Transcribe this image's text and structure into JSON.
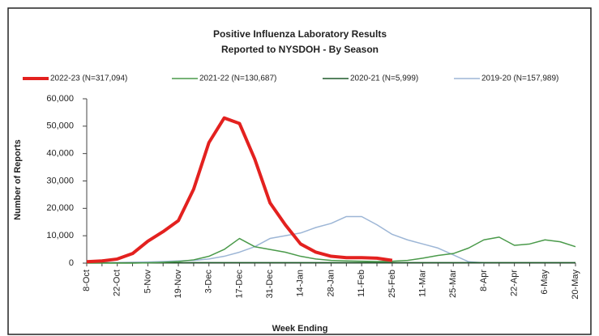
{
  "chart_data": {
    "type": "line",
    "title": "Positive Influenza Laboratory Results",
    "subtitle": "Reported to NYSDOH - By Season",
    "y_label": "Number of Reports",
    "x_label": "Week Ending",
    "categories": [
      "8-Oct",
      null,
      "22-Oct",
      null,
      "5-Nov",
      null,
      "19-Nov",
      null,
      "3-Dec",
      null,
      "17-Dec",
      null,
      "31-Dec",
      null,
      "14-Jan",
      null,
      "28-Jan",
      null,
      "11-Feb",
      null,
      "25-Feb",
      null,
      "11-Mar",
      null,
      "25-Mar",
      null,
      "8-Apr",
      null,
      "22-Apr",
      null,
      "6-May",
      null,
      "20-May"
    ],
    "series": [
      {
        "name": "2022-23 (N=317,094)",
        "color": "#e3211f",
        "width": 4,
        "values": [
          500,
          800,
          1500,
          3500,
          8000,
          11500,
          15500,
          27000,
          44000,
          53000,
          51000,
          38000,
          22000,
          14000,
          7000,
          4000,
          2500,
          2000,
          2000,
          1800,
          1000,
          null,
          null,
          null,
          null,
          null,
          null,
          null,
          null,
          null,
          null,
          null,
          null
        ]
      },
      {
        "name": "2021-22 (N=130,687)",
        "color": "#4a9a4a",
        "width": 1.5,
        "values": [
          0,
          0,
          0,
          0,
          100,
          300,
          600,
          1200,
          2500,
          5000,
          9000,
          6000,
          5000,
          4000,
          2500,
          1500,
          1000,
          800,
          700,
          600,
          700,
          1000,
          1800,
          2800,
          3500,
          5500,
          8500,
          9500,
          6500,
          7000,
          8500,
          7800,
          6000
        ]
      },
      {
        "name": "2020-21 (N=5,999)",
        "color": "#1f5a2a",
        "width": 1.5,
        "values": [
          100,
          100,
          100,
          100,
          100,
          150,
          150,
          200,
          200,
          200,
          200,
          200,
          200,
          200,
          200,
          200,
          200,
          200,
          200,
          200,
          200,
          200,
          200,
          200,
          200,
          200,
          200,
          200,
          200,
          200,
          200,
          200,
          200
        ]
      },
      {
        "name": "2019-20 (N=157,989)",
        "color": "#9db6d6",
        "width": 1.5,
        "values": [
          100,
          100,
          200,
          300,
          400,
          600,
          800,
          1000,
          1500,
          2500,
          4000,
          6000,
          9000,
          10000,
          11000,
          13000,
          14500,
          17000,
          17000,
          14000,
          10500,
          8500,
          7000,
          5500,
          3000,
          500,
          100,
          null,
          null,
          null,
          null,
          null,
          null
        ]
      }
    ],
    "ylim": [
      0,
      60000
    ],
    "yticks": [
      0,
      {
        "value": 10000,
        "label": "10,000"
      },
      {
        "value": 20000,
        "label": "20,000"
      },
      {
        "value": 30000,
        "label": "30,000"
      },
      {
        "value": 40000,
        "label": "40,000"
      },
      {
        "value": 50000,
        "label": "50,000"
      },
      {
        "value": 60000,
        "label": "60,000"
      }
    ]
  }
}
